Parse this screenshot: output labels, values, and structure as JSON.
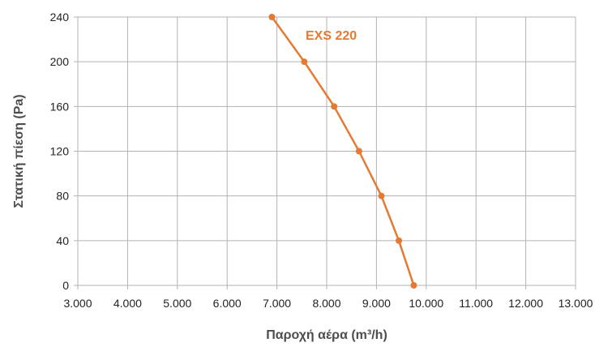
{
  "chart_data": {
    "type": "line",
    "title": "",
    "xlabel": "Παροχή αέρα (m³/h)",
    "ylabel": "Στατική πίεση (Pa)",
    "xlim": [
      3000,
      13000
    ],
    "ylim": [
      0,
      240
    ],
    "x_ticks": [
      {
        "value": 3000,
        "label": "3.000"
      },
      {
        "value": 4000,
        "label": "4.000"
      },
      {
        "value": 5000,
        "label": "5.000"
      },
      {
        "value": 6000,
        "label": "6.000"
      },
      {
        "value": 7000,
        "label": "7.000"
      },
      {
        "value": 8000,
        "label": "8.000"
      },
      {
        "value": 9000,
        "label": "9.000"
      },
      {
        "value": 10000,
        "label": "10.000"
      },
      {
        "value": 11000,
        "label": "11.000"
      },
      {
        "value": 12000,
        "label": "12.000"
      },
      {
        "value": 13000,
        "label": "13.000"
      }
    ],
    "y_ticks": [
      {
        "value": 0,
        "label": "0"
      },
      {
        "value": 40,
        "label": "40"
      },
      {
        "value": 80,
        "label": "80"
      },
      {
        "value": 120,
        "label": "120"
      },
      {
        "value": 160,
        "label": "160"
      },
      {
        "value": 200,
        "label": "200"
      },
      {
        "value": 240,
        "label": "240"
      }
    ],
    "grid": true,
    "series": [
      {
        "name": "EXS 220",
        "color": "#e47a33",
        "points": [
          {
            "x": 6900,
            "y": 240
          },
          {
            "x": 7550,
            "y": 200
          },
          {
            "x": 8150,
            "y": 160
          },
          {
            "x": 8650,
            "y": 120
          },
          {
            "x": 9100,
            "y": 80
          },
          {
            "x": 9450,
            "y": 40
          },
          {
            "x": 9750,
            "y": 0
          }
        ]
      }
    ]
  }
}
